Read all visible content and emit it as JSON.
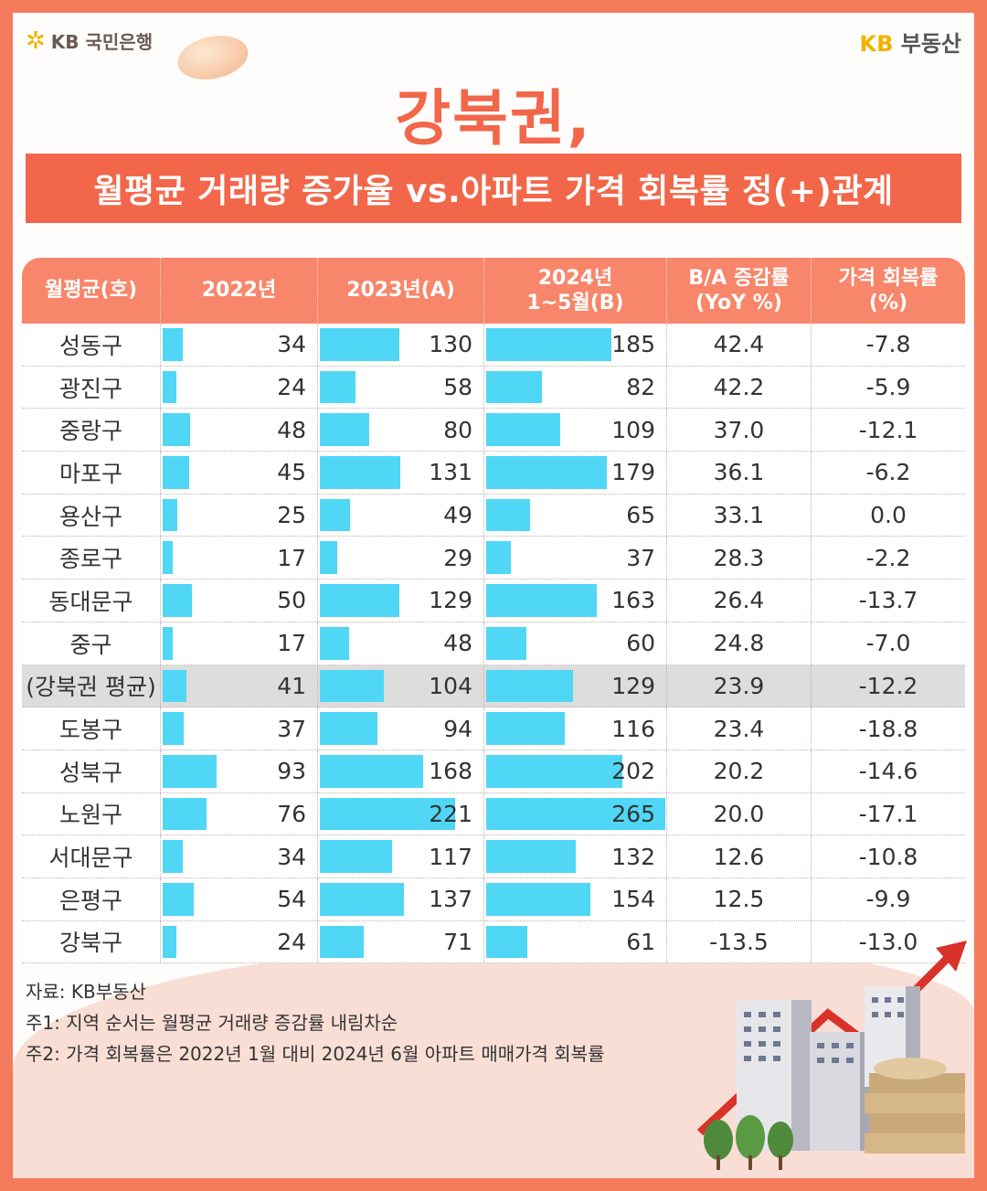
{
  "brand": {
    "bank": "KB 국민은행",
    "realestate_kb": "KB",
    "realestate_name": "부동산"
  },
  "title": "강북권,",
  "subtitle": "월평균 거래량 증가율 vs.아파트 가격 회복률 정(+)관계",
  "colors": {
    "accent": "#f2674a",
    "header": "#f7866b",
    "bar": "#4fd7f5",
    "avg_row": "#dddddd"
  },
  "chart_data": {
    "type": "table",
    "columns": [
      "월평균(호)",
      "2022년",
      "2023년(A)",
      "2024년\n1~5월(B)",
      "B/A 증감률\n(YoY %)",
      "가격 회복률\n(%)"
    ],
    "bar_max": 265,
    "rows": [
      {
        "name": "성동구",
        "y2022": 34,
        "y2023": 130,
        "y2024": 185,
        "yoy": "42.4",
        "recovery": "-7.8"
      },
      {
        "name": "광진구",
        "y2022": 24,
        "y2023": 58,
        "y2024": 82,
        "yoy": "42.2",
        "recovery": "-5.9"
      },
      {
        "name": "중랑구",
        "y2022": 48,
        "y2023": 80,
        "y2024": 109,
        "yoy": "37.0",
        "recovery": "-12.1"
      },
      {
        "name": "마포구",
        "y2022": 45,
        "y2023": 131,
        "y2024": 179,
        "yoy": "36.1",
        "recovery": "-6.2"
      },
      {
        "name": "용산구",
        "y2022": 25,
        "y2023": 49,
        "y2024": 65,
        "yoy": "33.1",
        "recovery": "0.0"
      },
      {
        "name": "종로구",
        "y2022": 17,
        "y2023": 29,
        "y2024": 37,
        "yoy": "28.3",
        "recovery": "-2.2"
      },
      {
        "name": "동대문구",
        "y2022": 50,
        "y2023": 129,
        "y2024": 163,
        "yoy": "26.4",
        "recovery": "-13.7"
      },
      {
        "name": "중구",
        "y2022": 17,
        "y2023": 48,
        "y2024": 60,
        "yoy": "24.8",
        "recovery": "-7.0"
      },
      {
        "name": "(강북권 평균)",
        "y2022": 41,
        "y2023": 104,
        "y2024": 129,
        "yoy": "23.9",
        "recovery": "-12.2",
        "highlight": true
      },
      {
        "name": "도봉구",
        "y2022": 37,
        "y2023": 94,
        "y2024": 116,
        "yoy": "23.4",
        "recovery": "-18.8"
      },
      {
        "name": "성북구",
        "y2022": 93,
        "y2023": 168,
        "y2024": 202,
        "yoy": "20.2",
        "recovery": "-14.6"
      },
      {
        "name": "노원구",
        "y2022": 76,
        "y2023": 221,
        "y2024": 265,
        "yoy": "20.0",
        "recovery": "-17.1"
      },
      {
        "name": "서대문구",
        "y2022": 34,
        "y2023": 117,
        "y2024": 132,
        "yoy": "12.6",
        "recovery": "-10.8"
      },
      {
        "name": "은평구",
        "y2022": 54,
        "y2023": 137,
        "y2024": 154,
        "yoy": "12.5",
        "recovery": "-9.9"
      },
      {
        "name": "강북구",
        "y2022": 24,
        "y2023": 71,
        "y2024": 61,
        "yoy": "-13.5",
        "recovery": "-13.0"
      }
    ]
  },
  "notes": [
    "자료: KB부동산",
    "주1: 지역 순서는 월평균 거래량 증감률 내림차순",
    "주2: 가격 회복률은 2022년 1월 대비 2024년 6월 아파트 매매가격 회복률"
  ]
}
